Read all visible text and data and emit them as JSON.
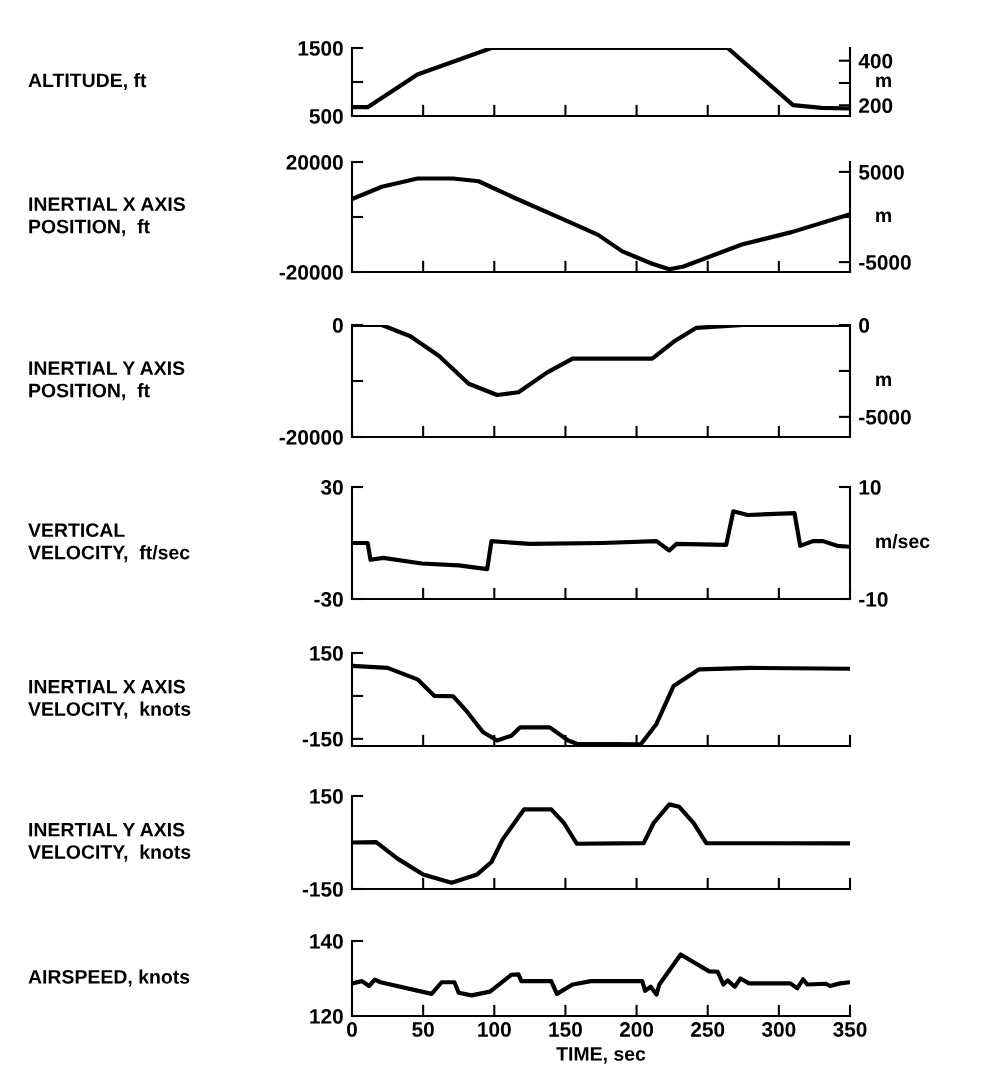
{
  "chart_data": [
    {
      "type": "line",
      "ylabel": "ALTITUDE, ft",
      "y2label": "m",
      "xlim": [
        0,
        350
      ],
      "xticks": [
        {
          "value": 0,
          "label": null
        },
        {
          "value": 50,
          "label": null
        },
        {
          "value": 100,
          "label": null
        },
        {
          "value": 150,
          "label": null
        },
        {
          "value": 200,
          "label": null
        },
        {
          "value": 250,
          "label": null
        },
        {
          "value": 300,
          "label": null
        },
        {
          "value": 350,
          "label": null
        }
      ],
      "ylim": [
        500,
        1500
      ],
      "yticks": [
        500,
        {
          "value": 1000,
          "label": null
        },
        1500
      ],
      "y2lim": [
        152,
        457
      ],
      "y2ticks": [
        200,
        {
          "value": 300,
          "label": null
        },
        400
      ],
      "tick_labels": "y",
      "line_style": "solid",
      "series": [
        {
          "color": "#000000",
          "x": [
            0,
            11,
            46,
            98,
            264,
            310,
            330,
            350
          ],
          "values": [
            630,
            630,
            1110,
            1500,
            1500,
            660,
            620,
            610
          ]
        }
      ]
    },
    {
      "type": "line",
      "ylabel": "INERTIAL X AXIS\nPOSITION,  ft",
      "y2label": "m",
      "xlim": [
        0,
        350
      ],
      "xticks": [
        {
          "value": 0,
          "label": null
        },
        {
          "value": 50,
          "label": null
        },
        {
          "value": 100,
          "label": null
        },
        {
          "value": 150,
          "label": null
        },
        {
          "value": 200,
          "label": null
        },
        {
          "value": 250,
          "label": null
        },
        {
          "value": 300,
          "label": null
        },
        {
          "value": 350,
          "label": null
        }
      ],
      "ylim": [
        -20000,
        20000
      ],
      "yticks": [
        -20000,
        {
          "value": 0,
          "label": null
        },
        20000
      ],
      "y2lim": [
        -6096,
        6096
      ],
      "y2ticks": [
        -5000,
        {
          "value": 0,
          "label": null
        },
        5000
      ],
      "tick_labels": "y",
      "line_style": "solid",
      "series": [
        {
          "color": "#000000",
          "x": [
            0,
            21,
            46,
            71,
            89,
            114,
            147,
            173,
            190,
            211,
            223,
            233,
            274,
            309,
            350
          ],
          "values": [
            6500,
            11000,
            14000,
            14000,
            13000,
            7000,
            -500,
            -6500,
            -12500,
            -17000,
            -19000,
            -18000,
            -10000,
            -5500,
            1000
          ]
        }
      ]
    },
    {
      "type": "line",
      "ylabel": "INERTIAL Y AXIS\nPOSITION,  ft",
      "y2label": "m",
      "xlim": [
        0,
        350
      ],
      "xticks": [
        {
          "value": 0,
          "label": null
        },
        {
          "value": 50,
          "label": null
        },
        {
          "value": 100,
          "label": null
        },
        {
          "value": 150,
          "label": null
        },
        {
          "value": 200,
          "label": null
        },
        {
          "value": 250,
          "label": null
        },
        {
          "value": 300,
          "label": null
        },
        {
          "value": 350,
          "label": null
        }
      ],
      "ylim": [
        -20000,
        0
      ],
      "yticks": [
        -20000,
        {
          "value": -10000,
          "label": null
        },
        0
      ],
      "y2lim": [
        -6096,
        0
      ],
      "y2ticks": [
        -5000,
        {
          "value": -2500,
          "label": null
        },
        0
      ],
      "tick_labels": "y",
      "line_style": "solid",
      "series": [
        {
          "color": "#000000",
          "x": [
            0,
            21,
            41,
            61,
            82,
            102,
            117,
            137,
            155,
            175,
            211,
            226,
            242,
            275,
            350
          ],
          "values": [
            0,
            0,
            -2000,
            -5500,
            -10500,
            -12500,
            -12000,
            -8500,
            -6000,
            -6000,
            -6000,
            -3000,
            -500,
            0,
            0
          ]
        }
      ]
    },
    {
      "type": "line",
      "ylabel": "VERTICAL\nVELOCITY,  ft/sec",
      "y2label": "m/sec",
      "xlim": [
        0,
        350
      ],
      "xticks": [
        {
          "value": 0,
          "label": null
        },
        {
          "value": 50,
          "label": null
        },
        {
          "value": 100,
          "label": null
        },
        {
          "value": 150,
          "label": null
        },
        {
          "value": 200,
          "label": null
        },
        {
          "value": 250,
          "label": null
        },
        {
          "value": 300,
          "label": null
        },
        {
          "value": 350,
          "label": null
        }
      ],
      "ylim": [
        -30,
        30
      ],
      "yticks": [
        -30,
        30
      ],
      "y2lim": [
        -10,
        10
      ],
      "y2ticks": [
        -10,
        10
      ],
      "tick_labels": "y",
      "line_style": "solid",
      "series": [
        {
          "color": "#000000",
          "x": [
            0,
            11,
            13,
            22,
            49,
            75,
            95,
            98,
            125,
            176,
            214,
            223,
            228,
            263,
            268,
            278,
            311,
            315,
            324,
            331,
            341,
            350
          ],
          "values": [
            0,
            0,
            -9,
            -8,
            -11,
            -12,
            -14,
            1,
            -0.5,
            0,
            1,
            -4,
            -0.5,
            -1,
            17,
            15,
            16,
            -1.5,
            1,
            1,
            -1.5,
            -2
          ]
        }
      ]
    },
    {
      "type": "line",
      "ylabel": "INERTIAL X AXIS\nVELOCITY,  knots",
      "xlim": [
        0,
        350
      ],
      "xticks": [
        {
          "value": 0,
          "label": null
        },
        {
          "value": 50,
          "label": null
        },
        {
          "value": 100,
          "label": null
        },
        {
          "value": 150,
          "label": null
        },
        {
          "value": 200,
          "label": null
        },
        {
          "value": 250,
          "label": null
        },
        {
          "value": 300,
          "label": null
        },
        {
          "value": 350,
          "label": null
        }
      ],
      "ylim": [
        -175,
        150
      ],
      "yticks": [
        -150,
        {
          "value": 0,
          "label": null
        },
        150
      ],
      "tick_labels": "y",
      "line_style": "solid",
      "series": [
        {
          "color": "#000000",
          "x": [
            0,
            25,
            46,
            58,
            71,
            81,
            92,
            102,
            112,
            118,
            139,
            152,
            158,
            203,
            214,
            226,
            244,
            280,
            350
          ],
          "values": [
            105,
            98,
            58,
            0,
            -1,
            -56,
            -126,
            -156,
            -139,
            -110,
            -110,
            -156,
            -167,
            -169,
            -98,
            35,
            93,
            98,
            95
          ]
        }
      ]
    },
    {
      "type": "line",
      "ylabel": "INERTIAL Y AXIS\nVELOCITY,  knots",
      "xlim": [
        0,
        350
      ],
      "xticks": [
        {
          "value": 0,
          "label": null
        },
        {
          "value": 50,
          "label": null
        },
        {
          "value": 100,
          "label": null
        },
        {
          "value": 150,
          "label": null
        },
        {
          "value": 200,
          "label": null
        },
        {
          "value": 250,
          "label": null
        },
        {
          "value": 300,
          "label": null
        },
        {
          "value": 350,
          "label": null
        }
      ],
      "ylim": [
        -150,
        150
      ],
      "yticks": [
        -150,
        150
      ],
      "tick_labels": "y",
      "line_style": "solid",
      "series": [
        {
          "color": "#000000",
          "x": [
            0,
            17,
            32,
            50,
            70,
            88,
            98,
            106,
            121,
            140,
            149,
            158,
            205,
            212,
            223,
            230,
            240,
            249,
            350
          ],
          "values": [
            0,
            1,
            -52,
            -103,
            -130,
            -103,
            -63,
            11,
            107,
            107,
            63,
            -4,
            -2,
            63,
            123,
            115,
            63,
            -2,
            -3
          ]
        }
      ]
    },
    {
      "type": "line",
      "ylabel": "AIRSPEED, knots",
      "xlabel": "TIME, sec",
      "xlim": [
        0,
        350
      ],
      "xticks": [
        0,
        50,
        100,
        150,
        200,
        250,
        300,
        350
      ],
      "ylim": [
        120,
        140
      ],
      "yticks": [
        120,
        140
      ],
      "line_style": "solid",
      "series": [
        {
          "color": "#000000",
          "x": [
            0,
            7,
            12,
            16,
            20,
            56,
            63,
            72,
            75,
            84,
            97,
            112,
            117,
            119,
            140,
            144,
            155,
            168,
            204,
            206,
            210,
            214,
            216,
            231,
            251,
            257,
            261,
            264,
            269,
            273,
            279,
            308,
            313,
            317,
            320,
            333,
            336,
            343,
            350
          ],
          "values": [
            128.7,
            129.3,
            128,
            129.7,
            129,
            125.9,
            129,
            129,
            126.2,
            125.5,
            126.5,
            131,
            131.1,
            129.3,
            129.3,
            125.9,
            128.4,
            129.3,
            129.3,
            126.7,
            127.8,
            125.7,
            128.4,
            136.4,
            131.9,
            131.8,
            128.4,
            129.5,
            127.8,
            130,
            128.7,
            128.7,
            127.4,
            129.8,
            128.4,
            128.6,
            128,
            128.7,
            129
          ]
        }
      ]
    }
  ]
}
